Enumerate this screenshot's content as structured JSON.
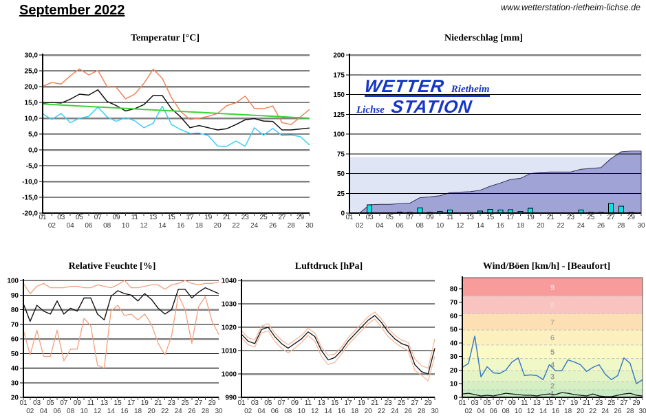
{
  "header": {
    "title": "September 2022",
    "website": "www.wetterstation-rietheim-lichse.de"
  },
  "logo": {
    "wetter": "WETTER",
    "rietheim": "Rietheim",
    "lichse": "Lichse",
    "station": "STATION",
    "color": "#1536c8"
  },
  "chart_data": [
    {
      "type": "line",
      "title": "Temperatur [°C]",
      "xlabel": "",
      "ylabel": "°C",
      "ylim": [
        -20,
        30
      ],
      "grid": true,
      "legend_position": "none",
      "x": [
        "01",
        "02",
        "03",
        "04",
        "05",
        "06",
        "07",
        "08",
        "09",
        "10",
        "11",
        "12",
        "13",
        "14",
        "15",
        "16",
        "17",
        "18",
        "19",
        "20",
        "21",
        "22",
        "23",
        "24",
        "25",
        "26",
        "27",
        "28",
        "29",
        "30"
      ],
      "yticks": [
        {
          "v": 30,
          "label": "30,0",
          "heavy": true
        },
        {
          "v": 25,
          "label": "25,0"
        },
        {
          "v": 20,
          "label": "20,0",
          "heavy": true
        },
        {
          "v": 15,
          "label": "15,0"
        },
        {
          "v": 10,
          "label": "10,0",
          "heavy": true
        },
        {
          "v": 5,
          "label": "5,0"
        },
        {
          "v": 0,
          "label": "0,0",
          "heavy": true
        },
        {
          "v": -5,
          "label": "-5,0"
        },
        {
          "v": -10,
          "label": "-10,0",
          "heavy": true
        },
        {
          "v": -15,
          "label": "-15,0"
        },
        {
          "v": -20,
          "label": "-20,0",
          "heavy": true,
          "line": false
        }
      ],
      "series": [
        {
          "name": "max",
          "color": "#f0845c",
          "width": 1.5,
          "values": [
            20.1,
            21.3,
            20.8,
            23.4,
            25.6,
            23.7,
            25.1,
            20,
            19.8,
            16.1,
            17.6,
            21,
            25.5,
            22.6,
            16.5,
            12.1,
            9.6,
            10,
            10.6,
            11.5,
            14,
            14.9,
            17,
            13.1,
            13,
            13.9,
            8.6,
            8,
            10.4,
            12.8
          ]
        },
        {
          "name": "mittel",
          "color": "#111111",
          "width": 1.5,
          "values": [
            14.8,
            15,
            14.8,
            16,
            17.6,
            17.3,
            19,
            15.3,
            14,
            12.3,
            13,
            14.3,
            17.2,
            17.2,
            13,
            10.4,
            7,
            7.7,
            7,
            6.3,
            6.7,
            8,
            9.5,
            9.9,
            9.1,
            9,
            6.3,
            6.3,
            6.6,
            6.9
          ]
        },
        {
          "name": "min",
          "color": "#3dccfa",
          "width": 1.5,
          "values": [
            11.4,
            9.6,
            11.5,
            8.6,
            10,
            10.6,
            13.5,
            10.4,
            9,
            10.2,
            9.2,
            7,
            8.4,
            13.8,
            8,
            6.4,
            5.2,
            5.3,
            4.5,
            1.2,
            1.1,
            2.8,
            1.1,
            7,
            4.6,
            6.8,
            4.5,
            4.7,
            4.2,
            1.5
          ]
        },
        {
          "name": "trend",
          "color": "#3cd435",
          "width": 2,
          "values": [
            14.5,
            14.34,
            14.19,
            14.03,
            13.88,
            13.72,
            13.57,
            13.41,
            13.26,
            13.1,
            12.95,
            12.79,
            12.64,
            12.48,
            12.33,
            12.17,
            12.02,
            11.86,
            11.71,
            11.55,
            11.4,
            11.24,
            11.09,
            10.93,
            10.78,
            10.62,
            10.47,
            10.31,
            10.16,
            10
          ]
        }
      ]
    },
    {
      "type": "area",
      "title": "Niederschlag [mm]",
      "xlabel": "",
      "ylabel": "mm",
      "ylim": [
        0,
        200
      ],
      "grid": true,
      "legend_position": "none",
      "x": [
        "01",
        "02",
        "03",
        "04",
        "05",
        "06",
        "07",
        "08",
        "09",
        "10",
        "11",
        "12",
        "13",
        "14",
        "15",
        "16",
        "17",
        "18",
        "19",
        "20",
        "21",
        "22",
        "23",
        "24",
        "25",
        "26",
        "27",
        "28",
        "29",
        "30"
      ],
      "yticks": [
        {
          "v": 200,
          "label": "200",
          "heavy": true
        },
        {
          "v": 175,
          "label": "175"
        },
        {
          "v": 150,
          "label": "150"
        },
        {
          "v": 125,
          "label": "125"
        },
        {
          "v": 100,
          "label": "100"
        },
        {
          "v": 75,
          "label": "75"
        },
        {
          "v": 50,
          "label": "50"
        },
        {
          "v": 25,
          "label": "25"
        },
        {
          "v": 0,
          "label": "0",
          "line": false
        }
      ],
      "bands": [
        {
          "from": 0,
          "to": 71,
          "color": "#dfe5f5"
        }
      ],
      "area": {
        "name": "kumuliert",
        "fill": "#9fa3d6",
        "stroke": "#333355",
        "values": [
          0,
          0,
          10.5,
          11,
          11,
          12,
          12.5,
          19.5,
          20.5,
          22,
          26,
          26.5,
          27,
          29,
          34,
          38,
          42.5,
          44,
          50,
          51.5,
          52,
          52,
          52,
          55.5,
          56.5,
          57.5,
          69,
          77.5,
          78.5,
          78.5
        ]
      },
      "bars": {
        "name": "taeglich",
        "color": "#00e6e6",
        "values": [
          0,
          0,
          10.5,
          0.5,
          0,
          1.5,
          1,
          6.5,
          1,
          2,
          4,
          0.5,
          0.5,
          2.5,
          5,
          4,
          4.5,
          2,
          6,
          0.5,
          0,
          0,
          0,
          4,
          1,
          1,
          12,
          8.5,
          1,
          0
        ]
      }
    },
    {
      "type": "line",
      "title": "Relative Feuchte [%]",
      "xlabel": "",
      "ylabel": "%",
      "ylim": [
        20,
        100
      ],
      "grid": true,
      "legend_position": "none",
      "x": [
        "01",
        "02",
        "03",
        "04",
        "05",
        "06",
        "07",
        "08",
        "09",
        "10",
        "11",
        "12",
        "13",
        "14",
        "15",
        "16",
        "17",
        "18",
        "19",
        "20",
        "21",
        "22",
        "23",
        "24",
        "25",
        "26",
        "27",
        "28",
        "29",
        "30"
      ],
      "yticks": [
        {
          "v": 100,
          "label": "100"
        },
        {
          "v": 90,
          "label": "90"
        },
        {
          "v": 80,
          "label": "80",
          "heavy": true
        },
        {
          "v": 70,
          "label": "70"
        },
        {
          "v": 60,
          "label": "60",
          "heavy": true
        },
        {
          "v": 50,
          "label": "50"
        },
        {
          "v": 40,
          "label": "40",
          "heavy": true
        },
        {
          "v": 30,
          "label": "30"
        },
        {
          "v": 20,
          "label": "20",
          "line": false
        }
      ],
      "series": [
        {
          "name": "max",
          "color": "#f2a07c",
          "width": 1.3,
          "values": [
            98,
            91,
            96,
            98,
            95,
            95,
            95,
            96,
            96,
            95,
            95,
            97,
            96,
            95,
            97,
            100,
            95,
            95,
            96,
            97,
            97,
            94,
            97,
            98,
            100,
            98,
            97,
            98,
            98,
            99
          ]
        },
        {
          "name": "mittel",
          "color": "#111111",
          "width": 1.4,
          "values": [
            84,
            72,
            83,
            79,
            77,
            86,
            77,
            81,
            79,
            88,
            88,
            77,
            73,
            89,
            93,
            91,
            90,
            86,
            91,
            87,
            81,
            77,
            80,
            94,
            94,
            88,
            92,
            95,
            93,
            91
          ]
        },
        {
          "name": "min",
          "color": "#f2a07c",
          "width": 1.3,
          "values": [
            66,
            49,
            66,
            48,
            48,
            66,
            45,
            53,
            53,
            74,
            69,
            42,
            40,
            79,
            83,
            76,
            77,
            73,
            77,
            70,
            57,
            49,
            62,
            90,
            80,
            57,
            82,
            89,
            72,
            63
          ]
        }
      ]
    },
    {
      "type": "line",
      "title": "Luftdruck [hPa]",
      "xlabel": "",
      "ylabel": "hPa",
      "ylim": [
        990,
        1040
      ],
      "grid": true,
      "legend_position": "none",
      "x": [
        "01",
        "02",
        "03",
        "04",
        "05",
        "06",
        "07",
        "08",
        "09",
        "10",
        "11",
        "12",
        "13",
        "14",
        "15",
        "16",
        "17",
        "18",
        "19",
        "20",
        "21",
        "22",
        "23",
        "24",
        "25",
        "26",
        "27",
        "28",
        "29",
        "30"
      ],
      "yticks": [
        {
          "v": 1040,
          "label": "1040",
          "heavy": true
        },
        {
          "v": 1030,
          "label": "1030"
        },
        {
          "v": 1020,
          "label": "1020"
        },
        {
          "v": 1010,
          "label": "1010"
        },
        {
          "v": 1000,
          "label": "1000",
          "heavy": true
        },
        {
          "v": 990,
          "label": "990",
          "line": false
        }
      ],
      "series": [
        {
          "name": "max",
          "color": "#f5b294",
          "width": 1.2,
          "values": [
            1018.5,
            1015.5,
            1014.5,
            1020.5,
            1021.5,
            1017.5,
            1014.5,
            1012.5,
            1014.5,
            1016.5,
            1019.5,
            1017.5,
            1011.5,
            1008,
            1008.5,
            1011.5,
            1015.5,
            1018.5,
            1021.5,
            1024.5,
            1026.5,
            1023.5,
            1019.5,
            1016.5,
            1014.5,
            1013.5,
            1006.5,
            1003.5,
            1002.5,
            1015
          ]
        },
        {
          "name": "mittel",
          "color": "#1a1a1a",
          "width": 1.4,
          "values": [
            1017,
            1014,
            1013,
            1019,
            1020,
            1016,
            1013,
            1011,
            1013,
            1015,
            1018,
            1016,
            1010,
            1006,
            1007,
            1010,
            1014,
            1017,
            1020,
            1023,
            1025,
            1022,
            1018,
            1015,
            1013,
            1012,
            1004,
            1001,
            1000,
            1011
          ]
        },
        {
          "name": "min",
          "color": "#f5b294",
          "width": 1.2,
          "values": [
            1015.5,
            1012.5,
            1011.5,
            1017.5,
            1018.5,
            1014,
            1011,
            1009,
            1011,
            1013.5,
            1016.5,
            1014,
            1007.5,
            1004,
            1005,
            1008.5,
            1012.5,
            1015.5,
            1018.5,
            1021.5,
            1023.5,
            1020,
            1016,
            1013.5,
            1011.5,
            1010,
            1001.5,
            999.5,
            997,
            1007.5
          ]
        }
      ]
    },
    {
      "type": "line",
      "title": "Wind/Böen [km/h] - [Beaufort]",
      "xlabel": "",
      "ylabel": "km/h",
      "ylim": [
        0,
        88
      ],
      "grid": false,
      "legend_position": "none",
      "border": true,
      "x": [
        "01",
        "02",
        "03",
        "04",
        "05",
        "06",
        "07",
        "08",
        "09",
        "10",
        "11",
        "12",
        "13",
        "14",
        "15",
        "16",
        "17",
        "18",
        "19",
        "20",
        "21",
        "22",
        "23",
        "24",
        "25",
        "26",
        "27",
        "28",
        "29",
        "30"
      ],
      "yticks": [
        {
          "v": 80,
          "label": "80",
          "line": false
        },
        {
          "v": 70,
          "label": "70",
          "line": false
        },
        {
          "v": 60,
          "label": "60",
          "line": false
        },
        {
          "v": 50,
          "label": "50",
          "line": false
        },
        {
          "v": 40,
          "label": "40",
          "line": false
        },
        {
          "v": 30,
          "label": "30",
          "line": false
        },
        {
          "v": 20,
          "label": "20",
          "line": false
        },
        {
          "v": 10,
          "label": "10",
          "line": false
        },
        {
          "v": 0,
          "label": "0",
          "line": false
        }
      ],
      "bands": [
        {
          "bft": 1,
          "from": 0,
          "to": 5.5,
          "color": "#c6ebc3"
        },
        {
          "bft": 2,
          "from": 5.5,
          "to": 11.5,
          "color": "#d5efc3"
        },
        {
          "bft": 3,
          "from": 11.5,
          "to": 19.5,
          "color": "#e4f4c5"
        },
        {
          "bft": 4,
          "from": 19.5,
          "to": 28.5,
          "color": "#f1f8c7"
        },
        {
          "bft": 5,
          "from": 28.5,
          "to": 38.5,
          "color": "#fbfac7"
        },
        {
          "bft": 6,
          "from": 38.5,
          "to": 49.5,
          "color": "#fcf0bf"
        },
        {
          "bft": 7,
          "from": 49.5,
          "to": 61.5,
          "color": "#fcdfb2"
        },
        {
          "bft": 8,
          "from": 61.5,
          "to": 74.5,
          "color": "#f9c4c0"
        },
        {
          "bft": 9,
          "from": 74.5,
          "to": 88,
          "color": "#f79b9b"
        }
      ],
      "separators": [
        5.5,
        11.5,
        19.5,
        28.5,
        38.5,
        49.5,
        61.5,
        74.5
      ],
      "band_labels": [
        {
          "v": 2.75,
          "text": "1",
          "color": "#9a9a9a"
        },
        {
          "v": 8.5,
          "text": "2",
          "color": "#9a9a9a"
        },
        {
          "v": 15.5,
          "text": "3",
          "color": "#9a9a9a"
        },
        {
          "v": 24,
          "text": "4",
          "color": "#9a9a9a"
        },
        {
          "v": 33.5,
          "text": "5",
          "color": "#9a9a9a"
        },
        {
          "v": 44,
          "text": "6",
          "color": "#a8a8a8"
        },
        {
          "v": 55.5,
          "text": "7",
          "color": "#b5b0a8"
        },
        {
          "v": 68,
          "text": "8",
          "color": "#eadada"
        },
        {
          "v": 81,
          "text": "9",
          "color": "#eadada"
        }
      ],
      "series": [
        {
          "name": "boeen",
          "color": "#3a7cc4",
          "width": 1.5,
          "values": [
            22,
            25,
            45,
            15,
            22.5,
            18,
            17.5,
            20,
            26,
            29,
            16,
            16.5,
            16,
            13,
            24,
            19.5,
            19.5,
            27.5,
            26,
            24,
            19,
            22,
            24,
            17,
            13,
            16,
            29,
            25,
            10,
            13
          ]
        },
        {
          "name": "wind-mittel",
          "color": "#151515",
          "width": 1.3,
          "values": [
            2.5,
            3,
            2,
            1,
            1.5,
            1,
            2,
            3,
            2.5,
            2,
            1.5,
            1.5,
            1,
            2,
            2.5,
            2,
            3.5,
            3,
            2,
            1.5,
            1,
            2.5,
            1,
            0.5,
            0.5,
            1.5,
            2.5,
            3,
            1.5,
            1
          ]
        }
      ]
    }
  ]
}
